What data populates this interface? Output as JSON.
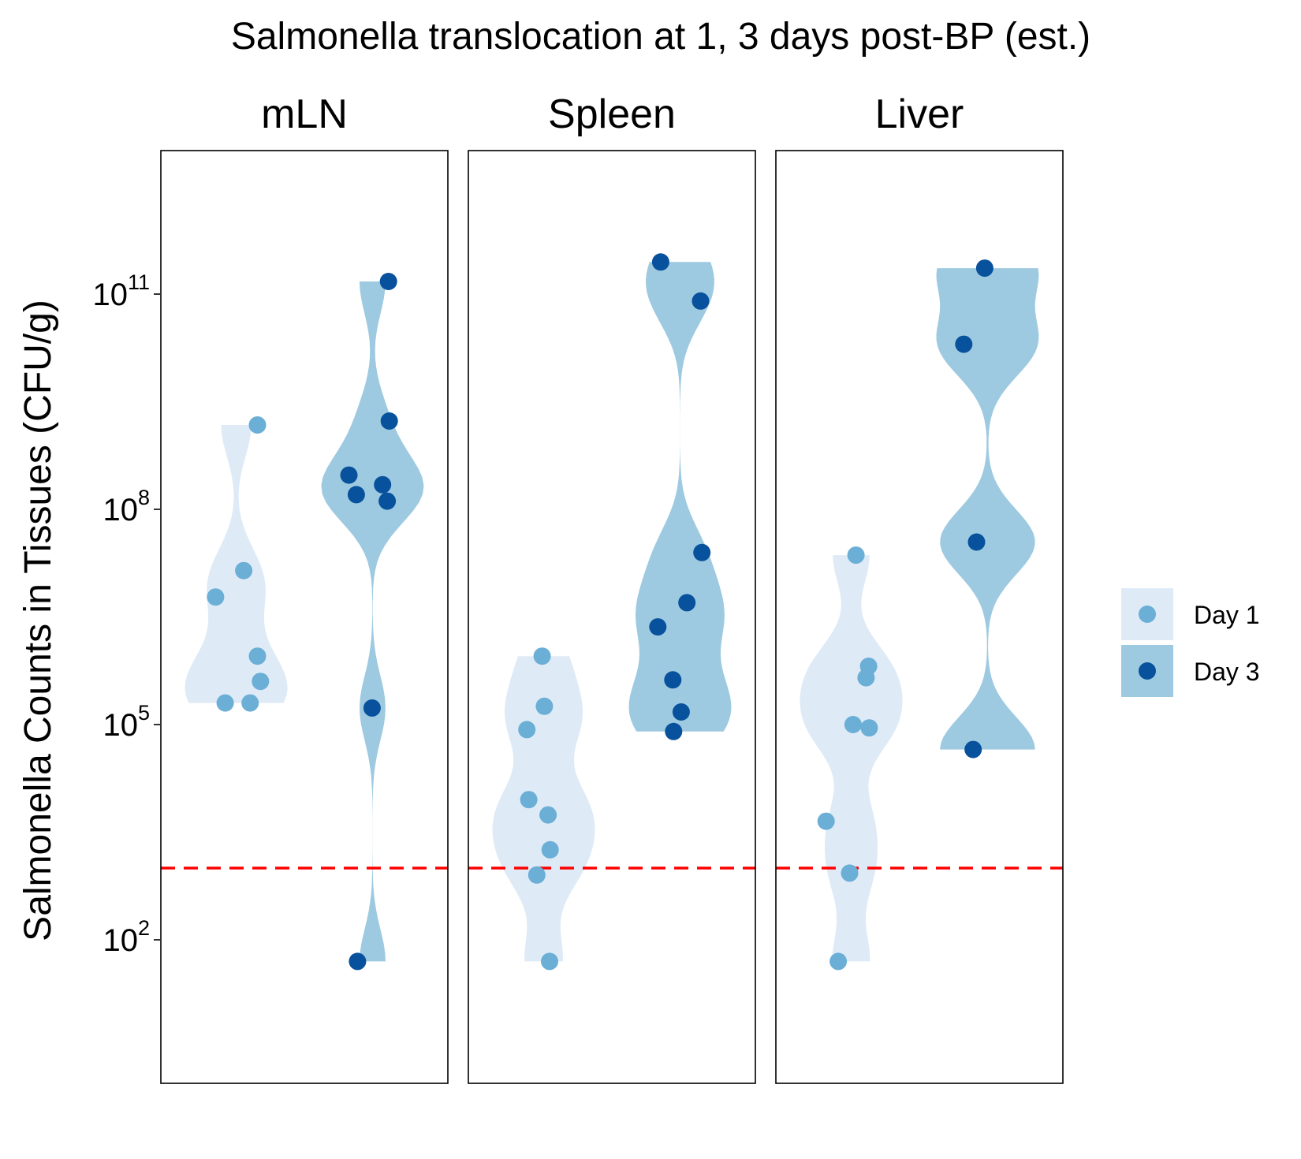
{
  "chart_data": {
    "type": "violin",
    "title": "Salmonella translocation at 1, 3 days post-BP (est.)",
    "ylabel": "Salmonella Counts in Tissues (CFU/g)",
    "xlabel": "",
    "y_scale": "log10",
    "ylim": [
      1,
      10000000000000.0
    ],
    "y_ticks": [
      {
        "value": 100.0,
        "base": "10",
        "exp": "2"
      },
      {
        "value": 100000.0,
        "base": "10",
        "exp": "5"
      },
      {
        "value": 100000000.0,
        "base": "10",
        "exp": "8"
      },
      {
        "value": 100000000000.0,
        "base": "10",
        "exp": "11"
      }
    ],
    "reference_line": {
      "value": 1000,
      "style": "dashed",
      "color": "#ff0000"
    },
    "grid": false,
    "legend": {
      "position": "right",
      "entries": [
        {
          "label": "Day 1",
          "fill": "#deebf7",
          "point": "#6baed6"
        },
        {
          "label": "Day 3",
          "fill": "#9ecae1",
          "point": "#08519c"
        }
      ]
    },
    "panels": [
      {
        "name": "mLN",
        "series": [
          {
            "name": "Day 1",
            "values": [
              1500000000.0,
              14000000.0,
              6000000.0,
              900000.0,
              400000.0,
              200000.0,
              200000.0
            ]
          },
          {
            "name": "Day 3",
            "values": [
              150000000000.0,
              1700000000.0,
              300000000.0,
              220000000.0,
              160000000.0,
              130000000.0,
              170000.0,
              50
            ]
          }
        ]
      },
      {
        "name": "Spleen",
        "series": [
          {
            "name": "Day 1",
            "values": [
              900000.0,
              180000.0,
              85000.0,
              9000.0,
              5500.0,
              1800.0,
              800,
              50
            ]
          },
          {
            "name": "Day 3",
            "values": [
              280000000000.0,
              80000000000.0,
              25000000.0,
              5000000.0,
              2300000.0,
              420000.0,
              150000.0,
              80000.0
            ]
          }
        ]
      },
      {
        "name": "Liver",
        "series": [
          {
            "name": "Day 1",
            "values": [
              23000000.0,
              650000.0,
              450000.0,
              100000.0,
              90000.0,
              4500.0,
              850,
              50
            ]
          },
          {
            "name": "Day 3",
            "values": [
              230000000000.0,
              20000000000.0,
              35000000.0,
              45000.0
            ]
          }
        ]
      }
    ]
  }
}
